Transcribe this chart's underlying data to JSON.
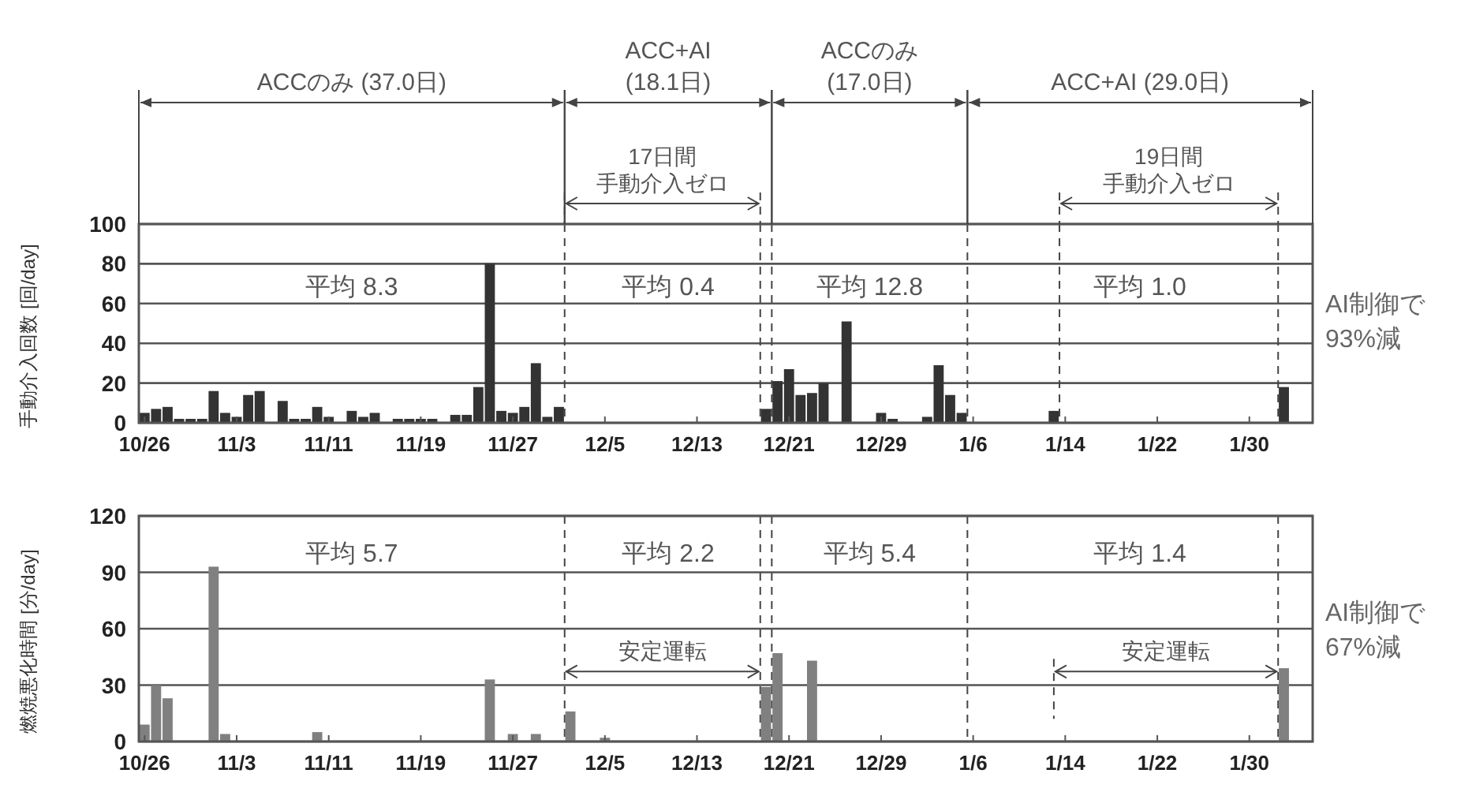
{
  "chart_data": [
    {
      "type": "bar",
      "ylabel": "手動介入回数 [回/day]",
      "color": "#333333",
      "categories": [
        "10/26",
        null,
        null,
        null,
        null,
        null,
        null,
        null,
        "11/3",
        null,
        null,
        null,
        null,
        null,
        null,
        null,
        "11/11",
        null,
        null,
        null,
        null,
        null,
        null,
        null,
        "11/19",
        null,
        null,
        null,
        null,
        null,
        null,
        null,
        "11/27",
        null,
        null,
        null,
        null,
        null,
        null,
        null,
        "12/5",
        null,
        null,
        null,
        null,
        null,
        null,
        null,
        "12/13",
        null,
        null,
        null,
        null,
        null,
        null,
        null,
        "12/21",
        null,
        null,
        null,
        null,
        null,
        null,
        null,
        "12/29",
        null,
        null,
        null,
        null,
        null,
        null,
        null,
        "1/6",
        null,
        null,
        null,
        null,
        null,
        null,
        null,
        "1/14",
        null,
        null,
        null,
        null,
        null,
        null,
        null,
        "1/22",
        null,
        null,
        null,
        null,
        null,
        null,
        null,
        "1/30",
        null,
        null,
        null,
        null
      ],
      "values": [
        5,
        7,
        8,
        2,
        2,
        2,
        16,
        5,
        3,
        14,
        16,
        0,
        11,
        2,
        2,
        8,
        3,
        0,
        6,
        3,
        5,
        0,
        2,
        2,
        2,
        2,
        0,
        4,
        4,
        18,
        80,
        6,
        5,
        8,
        30,
        3,
        8,
        0,
        0,
        0,
        0,
        0,
        0,
        0,
        0,
        0,
        0,
        0,
        0,
        0,
        0,
        0,
        0,
        0,
        7,
        21,
        27,
        14,
        15,
        20,
        0,
        51,
        0,
        0,
        5,
        2,
        0,
        0,
        3,
        29,
        14,
        5,
        0,
        0,
        0,
        0,
        0,
        0,
        0,
        6,
        0,
        0,
        0,
        0,
        0,
        0,
        0,
        0,
        0,
        0,
        0,
        0,
        0,
        0,
        0,
        0,
        0,
        0,
        0,
        18,
        0
      ],
      "ylim": [
        0,
        100
      ],
      "yticks": [
        0,
        20,
        40,
        60,
        80,
        100
      ],
      "grid": "y",
      "annotations": [
        "ACCのみ (37.0日)",
        "ACC+AI\n(18.1日)",
        "ACCのみ\n(17.0日)",
        "ACC+AI (29.0日)",
        "17日間",
        "手動介入ゼロ",
        "19日間",
        "手動介入ゼロ",
        "平均 8.3",
        "平均 0.4",
        "平均 12.8",
        "平均 1.0",
        "AI制御で\n93%減"
      ]
    },
    {
      "type": "bar",
      "ylabel": "燃焼悪化時間 [分/day]",
      "color": "#808080",
      "categories": [
        "10/26",
        null,
        null,
        null,
        null,
        null,
        null,
        null,
        "11/3",
        null,
        null,
        null,
        null,
        null,
        null,
        null,
        "11/11",
        null,
        null,
        null,
        null,
        null,
        null,
        null,
        "11/19",
        null,
        null,
        null,
        null,
        null,
        null,
        null,
        "11/27",
        null,
        null,
        null,
        null,
        null,
        null,
        null,
        "12/5",
        null,
        null,
        null,
        null,
        null,
        null,
        null,
        "12/13",
        null,
        null,
        null,
        null,
        null,
        null,
        null,
        "12/21",
        null,
        null,
        null,
        null,
        null,
        null,
        null,
        "12/29",
        null,
        null,
        null,
        null,
        null,
        null,
        null,
        "1/6",
        null,
        null,
        null,
        null,
        null,
        null,
        null,
        "1/14",
        null,
        null,
        null,
        null,
        null,
        null,
        null,
        "1/22",
        null,
        null,
        null,
        null,
        null,
        null,
        null,
        "1/30",
        null,
        null,
        null,
        null
      ],
      "values": [
        9,
        30,
        23,
        0,
        0,
        0,
        93,
        4,
        0,
        0,
        0,
        0,
        0,
        0,
        0,
        5,
        0,
        0,
        0,
        0,
        0,
        0,
        0,
        0,
        0,
        0,
        0,
        0,
        0,
        0,
        33,
        0,
        4,
        0,
        4,
        0,
        0,
        16,
        0,
        0,
        2,
        0,
        0,
        0,
        0,
        0,
        0,
        0,
        0,
        0,
        0,
        0,
        0,
        0,
        29,
        47,
        0,
        0,
        43,
        0,
        0,
        0,
        0,
        0,
        0,
        0,
        0,
        0,
        0,
        0,
        0,
        0,
        0,
        0,
        0,
        0,
        0,
        0,
        0,
        0,
        0,
        0,
        0,
        0,
        0,
        0,
        0,
        0,
        0,
        0,
        0,
        0,
        0,
        0,
        0,
        0,
        0,
        0,
        0,
        39,
        0
      ],
      "ylim": [
        0,
        120
      ],
      "yticks": [
        0,
        30,
        60,
        90,
        120
      ],
      "grid": "y",
      "annotations": [
        "平均 5.7",
        "平均 2.2",
        "平均 5.4",
        "平均 1.4",
        "安定運転",
        "安定運転",
        "AI制御で\n67%減"
      ]
    }
  ]
}
